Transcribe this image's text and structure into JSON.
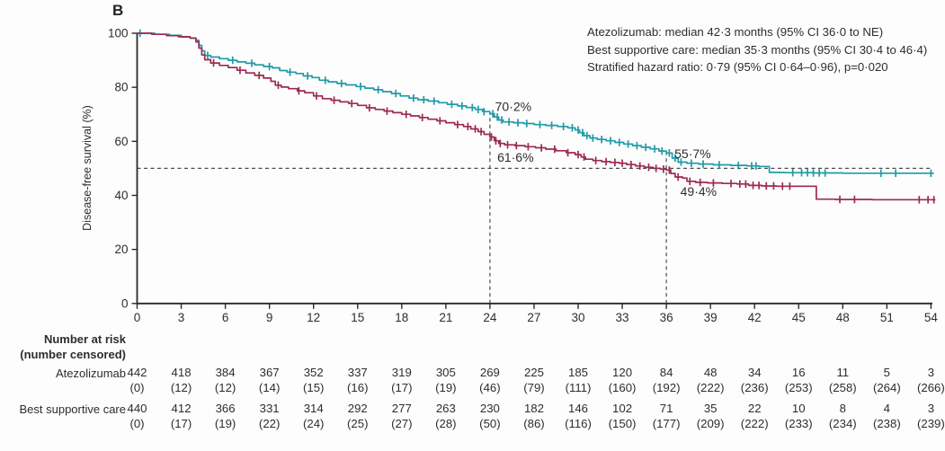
{
  "panel_label": "B",
  "colors": {
    "atezolizumab": "#219aa7",
    "best_supportive_care": "#9c2a52",
    "axis": "#2b2a28",
    "dashed": "#4d4d4d",
    "text": "#2e2d2b"
  },
  "legend_box": {
    "lines": [
      "Atezolizumab: median 42·3 months (95% CI 36·0 to NE)",
      "Best supportive care: median 35·3 months (95% CI 30·4 to 46·4)",
      "Stratified hazard ratio: 0·79 (95% CI 0·64–0·96), p=0·020"
    ]
  },
  "chart_data": {
    "type": "line",
    "subtype": "kaplan_meier_step",
    "title": "",
    "xlabel": "",
    "ylabel": "Disease-free survival (%)",
    "xlim": [
      0,
      54
    ],
    "ylim": [
      0,
      100
    ],
    "x_ticks": [
      0,
      3,
      6,
      9,
      12,
      15,
      18,
      21,
      24,
      27,
      30,
      33,
      36,
      39,
      42,
      45,
      48,
      51,
      54
    ],
    "y_ticks": [
      0,
      20,
      40,
      60,
      80,
      100
    ],
    "grid": false,
    "legend_position": "top-right",
    "reference_lines": {
      "horizontal_pct": 50,
      "vertical": [
        {
          "month": 24,
          "top_pct": 70.2
        },
        {
          "month": 36,
          "top_pct": 55.7
        }
      ]
    },
    "series": [
      {
        "name": "Atezolizumab",
        "color_key": "atezolizumab",
        "points": [
          [
            0,
            100
          ],
          [
            1.2,
            99.6
          ],
          [
            2.2,
            99.2
          ],
          [
            3.0,
            98.6
          ],
          [
            3.6,
            98.2
          ],
          [
            4.0,
            97.4
          ],
          [
            4.2,
            95.5
          ],
          [
            4.4,
            93.5
          ],
          [
            4.6,
            91.8
          ],
          [
            5.0,
            91.2
          ],
          [
            5.6,
            90.6
          ],
          [
            6.2,
            90.0
          ],
          [
            6.8,
            89.4
          ],
          [
            7.4,
            88.9
          ],
          [
            8.0,
            88.3
          ],
          [
            8.6,
            87.7
          ],
          [
            9.2,
            87.2
          ],
          [
            9.7,
            86.2
          ],
          [
            10.2,
            85.6
          ],
          [
            10.8,
            85.1
          ],
          [
            11.3,
            84.2
          ],
          [
            11.9,
            83.6
          ],
          [
            12.4,
            82.6
          ],
          [
            13.0,
            82.0
          ],
          [
            13.6,
            81.4
          ],
          [
            14.2,
            80.9
          ],
          [
            14.9,
            80.3
          ],
          [
            15.5,
            79.7
          ],
          [
            16.1,
            79.1
          ],
          [
            16.7,
            78.4
          ],
          [
            17.3,
            77.7
          ],
          [
            17.9,
            76.8
          ],
          [
            18.5,
            76.0
          ],
          [
            19.1,
            75.4
          ],
          [
            19.8,
            74.9
          ],
          [
            20.5,
            74.3
          ],
          [
            21.1,
            73.7
          ],
          [
            21.8,
            73.1
          ],
          [
            22.4,
            72.5
          ],
          [
            23.0,
            71.8
          ],
          [
            23.5,
            71.0
          ],
          [
            24.0,
            70.2
          ],
          [
            24.3,
            69.0
          ],
          [
            24.6,
            67.9
          ],
          [
            24.9,
            67.2
          ],
          [
            25.6,
            66.9
          ],
          [
            26.3,
            66.6
          ],
          [
            27.0,
            66.2
          ],
          [
            27.8,
            65.9
          ],
          [
            28.6,
            65.5
          ],
          [
            29.3,
            65.0
          ],
          [
            29.8,
            64.2
          ],
          [
            30.1,
            63.2
          ],
          [
            30.4,
            62.1
          ],
          [
            30.8,
            61.2
          ],
          [
            31.3,
            60.7
          ],
          [
            31.9,
            60.2
          ],
          [
            32.5,
            59.6
          ],
          [
            33.1,
            59.0
          ],
          [
            33.7,
            58.4
          ],
          [
            34.3,
            57.8
          ],
          [
            34.9,
            57.2
          ],
          [
            35.5,
            56.4
          ],
          [
            36.0,
            55.7
          ],
          [
            36.4,
            53.8
          ],
          [
            36.8,
            52.3
          ],
          [
            37.4,
            51.9
          ],
          [
            38.2,
            51.6
          ],
          [
            39.2,
            51.3
          ],
          [
            40.4,
            51.1
          ],
          [
            41.5,
            50.9
          ],
          [
            42.3,
            50.7
          ],
          [
            43.0,
            48.5
          ],
          [
            44.0,
            48.4
          ],
          [
            46.0,
            48.3
          ],
          [
            48.0,
            48.2
          ],
          [
            54.2,
            48.2
          ]
        ],
        "censor_times": [
          0.2,
          4.8,
          6.5,
          7.8,
          9.0,
          10.4,
          11.6,
          12.8,
          13.9,
          15.2,
          16.4,
          17.6,
          18.8,
          19.5,
          20.2,
          21.4,
          22.1,
          22.8,
          23.2,
          23.6,
          24.2,
          24.5,
          24.8,
          25.3,
          25.9,
          26.5,
          27.4,
          28.2,
          29.0,
          29.6,
          30.0,
          30.3,
          30.6,
          31.0,
          31.6,
          32.2,
          32.8,
          33.4,
          34.0,
          34.6,
          35.2,
          35.7,
          36.2,
          36.6,
          37.0,
          37.7,
          38.5,
          39.6,
          40.9,
          41.8,
          42.1,
          44.6,
          45.2,
          45.6,
          46.0,
          46.4,
          46.8,
          50.6,
          51.6,
          54.0
        ]
      },
      {
        "name": "Best supportive care",
        "color_key": "best_supportive_care",
        "points": [
          [
            0,
            100
          ],
          [
            1.0,
            99.6
          ],
          [
            2.0,
            99.1
          ],
          [
            2.8,
            98.7
          ],
          [
            3.6,
            98.2
          ],
          [
            4.0,
            96.8
          ],
          [
            4.2,
            94.5
          ],
          [
            4.4,
            92.0
          ],
          [
            4.6,
            90.2
          ],
          [
            5.0,
            89.0
          ],
          [
            5.6,
            88.1
          ],
          [
            6.2,
            87.3
          ],
          [
            6.8,
            86.3
          ],
          [
            7.4,
            85.3
          ],
          [
            8.0,
            84.4
          ],
          [
            8.6,
            83.4
          ],
          [
            9.1,
            82.2
          ],
          [
            9.4,
            80.8
          ],
          [
            9.8,
            80.1
          ],
          [
            10.3,
            79.5
          ],
          [
            10.9,
            78.7
          ],
          [
            11.4,
            78.0
          ],
          [
            12.0,
            76.8
          ],
          [
            12.6,
            75.8
          ],
          [
            13.2,
            75.2
          ],
          [
            13.8,
            74.6
          ],
          [
            14.4,
            74.0
          ],
          [
            15.0,
            73.3
          ],
          [
            15.6,
            72.4
          ],
          [
            16.2,
            71.8
          ],
          [
            16.8,
            71.2
          ],
          [
            17.4,
            70.6
          ],
          [
            18.0,
            70.0
          ],
          [
            18.6,
            69.4
          ],
          [
            19.2,
            68.8
          ],
          [
            19.8,
            68.2
          ],
          [
            20.4,
            67.6
          ],
          [
            21.0,
            66.9
          ],
          [
            21.6,
            66.2
          ],
          [
            22.2,
            65.5
          ],
          [
            22.7,
            64.6
          ],
          [
            23.2,
            63.6
          ],
          [
            23.6,
            62.6
          ],
          [
            24.0,
            61.6
          ],
          [
            24.3,
            60.2
          ],
          [
            24.6,
            59.2
          ],
          [
            25.0,
            58.7
          ],
          [
            25.7,
            58.4
          ],
          [
            26.4,
            58.0
          ],
          [
            27.1,
            57.6
          ],
          [
            27.8,
            57.1
          ],
          [
            28.5,
            56.5
          ],
          [
            29.2,
            55.8
          ],
          [
            29.8,
            55.1
          ],
          [
            30.2,
            54.2
          ],
          [
            30.5,
            53.4
          ],
          [
            31.0,
            52.9
          ],
          [
            31.6,
            52.5
          ],
          [
            32.2,
            52.2
          ],
          [
            32.8,
            51.9
          ],
          [
            33.3,
            51.4
          ],
          [
            33.9,
            50.9
          ],
          [
            34.5,
            50.4
          ],
          [
            35.1,
            50.0
          ],
          [
            35.6,
            49.7
          ],
          [
            36.0,
            49.4
          ],
          [
            36.3,
            48.1
          ],
          [
            36.6,
            46.8
          ],
          [
            37.1,
            46.4
          ],
          [
            37.4,
            45.2
          ],
          [
            38.0,
            44.8
          ],
          [
            38.8,
            44.6
          ],
          [
            39.8,
            44.4
          ],
          [
            40.8,
            44.2
          ],
          [
            41.6,
            43.7
          ],
          [
            42.5,
            43.5
          ],
          [
            43.5,
            43.4
          ],
          [
            45.0,
            43.4
          ],
          [
            46.2,
            38.6
          ],
          [
            47.5,
            38.5
          ],
          [
            50.0,
            38.4
          ],
          [
            54.3,
            38.4
          ]
        ],
        "censor_times": [
          5.2,
          7.0,
          8.3,
          9.6,
          11.0,
          12.2,
          13.4,
          14.6,
          15.8,
          17.0,
          18.3,
          19.4,
          20.6,
          21.8,
          22.5,
          23.0,
          23.4,
          24.1,
          24.4,
          24.7,
          25.2,
          25.8,
          26.6,
          27.5,
          28.4,
          29.3,
          30.0,
          30.4,
          31.2,
          31.9,
          32.5,
          33.0,
          33.6,
          34.2,
          34.8,
          35.3,
          35.8,
          36.2,
          36.8,
          37.6,
          38.3,
          39.2,
          40.4,
          41.0,
          41.4,
          41.9,
          42.3,
          42.8,
          43.3,
          43.9,
          44.4,
          47.8,
          48.8,
          53.2,
          53.8,
          54.2
        ]
      }
    ],
    "annotations": [
      {
        "text": "70·2%",
        "month": 24.35,
        "pct_baseline": 71.3,
        "series": "Atezolizumab"
      },
      {
        "text": "61·6%",
        "month": 24.5,
        "pct_baseline": 52.5,
        "series": "Best supportive care"
      },
      {
        "text": "55·7%",
        "month": 36.55,
        "pct_baseline": 53.8,
        "series": "Atezolizumab"
      },
      {
        "text": "49·4%",
        "month": 36.95,
        "pct_baseline": 39.8,
        "series": "Best supportive care"
      }
    ]
  },
  "risk_table": {
    "header": [
      "Number at risk",
      "(number censored)"
    ],
    "months": [
      0,
      3,
      6,
      9,
      12,
      15,
      18,
      21,
      24,
      27,
      30,
      33,
      36,
      39,
      42,
      45,
      48,
      51,
      54
    ],
    "rows": [
      {
        "label": "Atezolizumab",
        "at_risk": [
          442,
          418,
          384,
          367,
          352,
          337,
          319,
          305,
          269,
          225,
          185,
          120,
          84,
          48,
          34,
          16,
          11,
          5,
          3
        ],
        "censored": [
          "(0)",
          "(12)",
          "(12)",
          "(14)",
          "(15)",
          "(16)",
          "(17)",
          "(19)",
          "(46)",
          "(79)",
          "(111)",
          "(160)",
          "(192)",
          "(222)",
          "(236)",
          "(253)",
          "(258)",
          "(264)",
          "(266)"
        ]
      },
      {
        "label": "Best supportive care",
        "at_risk": [
          440,
          412,
          366,
          331,
          314,
          292,
          277,
          263,
          230,
          182,
          146,
          102,
          71,
          35,
          22,
          10,
          8,
          4,
          3
        ],
        "censored": [
          "(0)",
          "(17)",
          "(19)",
          "(22)",
          "(24)",
          "(25)",
          "(27)",
          "(28)",
          "(50)",
          "(86)",
          "(116)",
          "(150)",
          "(177)",
          "(209)",
          "(222)",
          "(233)",
          "(234)",
          "(238)",
          "(239)"
        ]
      }
    ]
  }
}
